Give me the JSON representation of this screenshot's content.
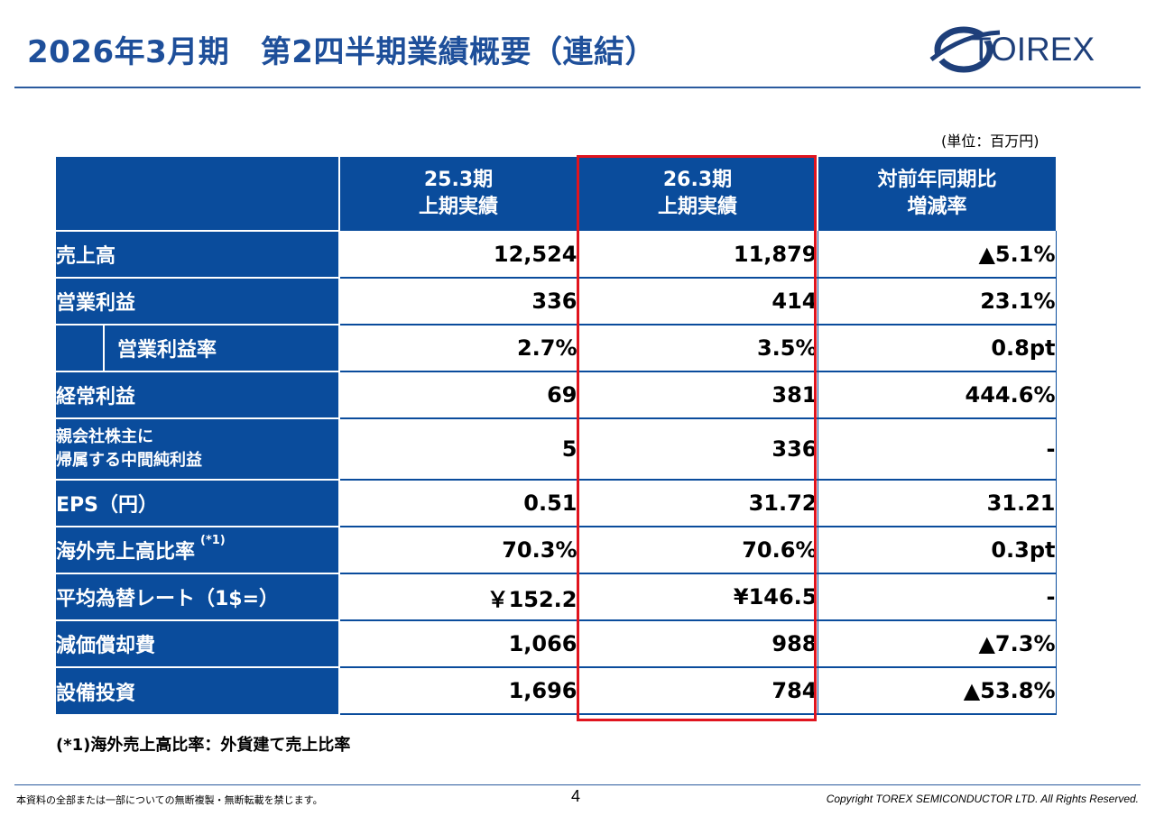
{
  "title": "2026年3月期　第2四半期業績概要（連結）",
  "logo": {
    "text": "TOIREX",
    "icon": "torex-globe-icon",
    "color": "#1e3f7a"
  },
  "unit_label": "(単位：百万円)",
  "columns": [
    {
      "line1": "25.3期",
      "line2": "上期実績"
    },
    {
      "line1": "26.3期",
      "line2": "上期実績"
    },
    {
      "line1": "対前年同期比",
      "line2": "増減率"
    }
  ],
  "rows": [
    {
      "label": "売上高",
      "values": [
        "12,524",
        "11,879",
        "▲5.1%"
      ]
    },
    {
      "label": "営業利益",
      "values": [
        "336",
        "414",
        "23.1%"
      ]
    },
    {
      "label": "営業利益率",
      "values": [
        "2.7%",
        "3.5%",
        "0.8pt"
      ]
    },
    {
      "label_line1": "親会社株主に",
      "label_line2": "帰属する中間純利益",
      "values": [
        "5",
        "336",
        "-"
      ]
    },
    {
      "label": "EPS（円）",
      "values": [
        "0.51",
        "31.72",
        "31.21"
      ]
    },
    {
      "label": "海外売上高比率",
      "note": "(*1)",
      "values": [
        "70.3%",
        "70.6%",
        "0.3pt"
      ]
    },
    {
      "label": "平均為替レート（1$=）",
      "values": [
        "￥152.2",
        "¥146.5",
        "-"
      ]
    },
    {
      "label": "減価償却費",
      "values": [
        "1,066",
        "988",
        "▲7.3%"
      ]
    },
    {
      "label": "設備投資",
      "values": [
        "1,696",
        "784",
        "▲53.8%"
      ]
    }
  ],
  "row_ordinary": {
    "label": "経常利益",
    "values": [
      "69",
      "381",
      "444.6%"
    ]
  },
  "footnote": "(*1)海外売上高比率：外貨建て売上比率",
  "footer": {
    "left": "本資料の全部または一部についての無断複製・無断転載を禁じます。",
    "page": "4",
    "right": "Copyright TOREX SEMICONDUCTOR LTD.  All Rights Reserved."
  },
  "colors": {
    "header_bg": "#0a4c9c",
    "title": "#1e4f9a",
    "highlight": "#e0141e"
  }
}
